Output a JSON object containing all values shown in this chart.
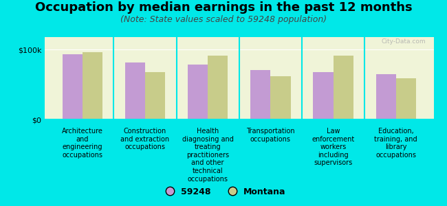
{
  "title": "Occupation by median earnings in the past 12 months",
  "subtitle": "(Note: State values scaled to 59248 population)",
  "categories": [
    "Architecture\nand\nengineering\noccupations",
    "Construction\nand extraction\noccupations",
    "Health\ndiagnosing and\ntreating\npractitioners\nand other\ntechnical\noccupations",
    "Transportation\noccupations",
    "Law\nenforcement\nworkers\nincluding\nsupervisors",
    "Education,\ntraining, and\nlibrary\noccupations"
  ],
  "values_59248": [
    93000,
    82000,
    79000,
    71000,
    68000,
    65000
  ],
  "values_montana": [
    96000,
    68000,
    91000,
    62000,
    91000,
    59000
  ],
  "color_59248": "#c39bd3",
  "color_montana": "#c8cc8a",
  "bar_width": 0.32,
  "ylim": [
    0,
    118000
  ],
  "yticks": [
    0,
    100000
  ],
  "ytick_labels": [
    "$0",
    "$100k"
  ],
  "background_color": "#00e8e8",
  "plot_bg_start": "#f0f4d8",
  "plot_bg_end": "#ffffff",
  "legend_label_59248": "59248",
  "legend_label_montana": "Montana",
  "watermark": "City-Data.com",
  "title_fontsize": 13,
  "subtitle_fontsize": 9,
  "tick_label_fontsize": 7,
  "legend_fontsize": 9
}
